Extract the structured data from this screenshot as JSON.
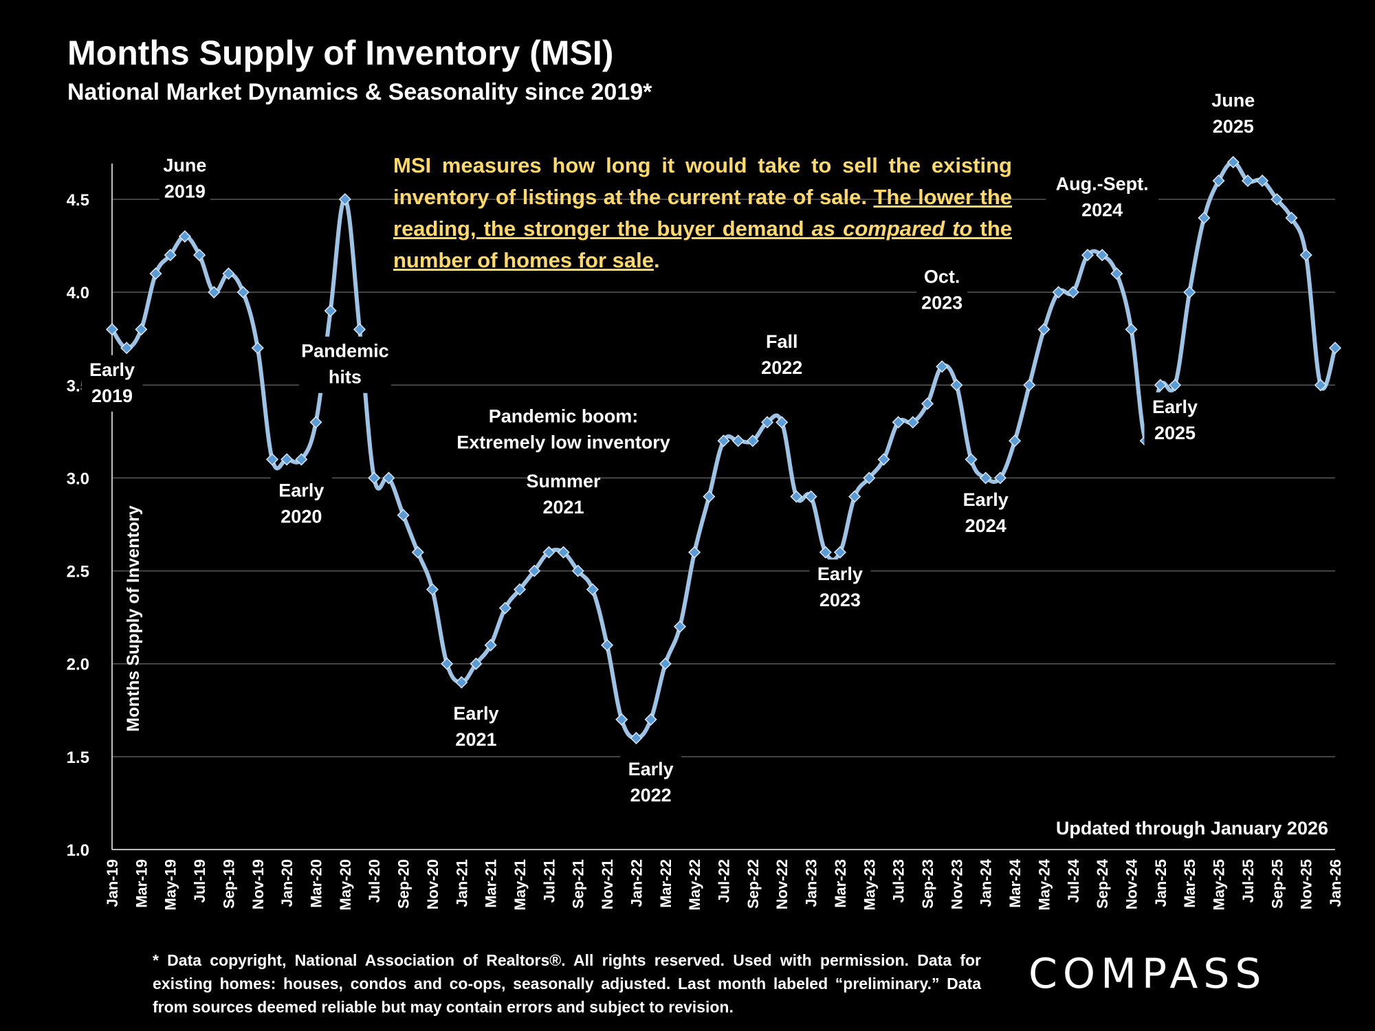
{
  "title": "Months Supply of Inventory (MSI)",
  "subtitle": "National Market Dynamics & Seasonality since 2019*",
  "description": {
    "part1": "MSI measures how long it would take to sell the existing inventory of listings at the current rate of sale. ",
    "part2": "The lower the reading, the stronger the buyer demand ",
    "part3": "as compared to",
    "part4": " the number of homes for sale",
    "part5": "."
  },
  "updated": "Updated through January 2026",
  "footnote": "* Data copyright, National Association of Realtors®. All rights reserved. Used with permission. Data for existing homes: houses, condos and co-ops, seasonally adjusted. Last month labeled “preliminary.” Data from sources deemed reliable but may contain errors and subject to revision.",
  "logo": "COMPASS",
  "colors": {
    "background": "#000000",
    "line": "#9dc3e6",
    "marker": "#5b9bd5",
    "accent_text": "#ffd966",
    "gridline": "#595959"
  },
  "chart_data": {
    "type": "line",
    "ylabel": "Months Supply of Inventory",
    "ylim": [
      1.0,
      4.7
    ],
    "yticks": [
      "1.0",
      "1.5",
      "2.0",
      "2.5",
      "3.0",
      "3.5",
      "4.0",
      "4.5"
    ],
    "ytick_values": [
      1.0,
      1.5,
      2.0,
      2.5,
      3.0,
      3.5,
      4.0,
      4.5
    ],
    "grid": true,
    "x": [
      "Jan-19",
      "Feb-19",
      "Mar-19",
      "Apr-19",
      "May-19",
      "Jun-19",
      "Jul-19",
      "Aug-19",
      "Sep-19",
      "Oct-19",
      "Nov-19",
      "Dec-19",
      "Jan-20",
      "Feb-20",
      "Mar-20",
      "Apr-20",
      "May-20",
      "Jun-20",
      "Jul-20",
      "Aug-20",
      "Sep-20",
      "Oct-20",
      "Nov-20",
      "Dec-20",
      "Jan-21",
      "Feb-21",
      "Mar-21",
      "Apr-21",
      "May-21",
      "Jun-21",
      "Jul-21",
      "Aug-21",
      "Sep-21",
      "Oct-21",
      "Nov-21",
      "Dec-21",
      "Jan-22",
      "Feb-22",
      "Mar-22",
      "Apr-22",
      "May-22",
      "Jun-22",
      "Jul-22",
      "Aug-22",
      "Sep-22",
      "Oct-22",
      "Nov-22",
      "Dec-22",
      "Jan-23",
      "Feb-23",
      "Mar-23",
      "Apr-23",
      "May-23",
      "Jun-23",
      "Jul-23",
      "Aug-23",
      "Sep-23",
      "Oct-23",
      "Nov-23",
      "Dec-23",
      "Jan-24",
      "Feb-24",
      "Mar-24",
      "Apr-24",
      "May-24",
      "Jun-24",
      "Jul-24",
      "Aug-24",
      "Sep-24",
      "Oct-24",
      "Nov-24",
      "Dec-24",
      "Jan-25",
      "Feb-25",
      "Mar-25",
      "Apr-25",
      "May-25",
      "Jun-25",
      "Jul-25",
      "Aug-25",
      "Sep-25",
      "Oct-25",
      "Nov-25",
      "Dec-25",
      "Jan-26"
    ],
    "xtick_labels": [
      "Jan-19",
      "Mar-19",
      "May-19",
      "Jul-19",
      "Sep-19",
      "Nov-19",
      "Jan-20",
      "Mar-20",
      "May-20",
      "Jul-20",
      "Sep-20",
      "Nov-20",
      "Jan-21",
      "Mar-21",
      "May-21",
      "Jul-21",
      "Sep-21",
      "Nov-21",
      "Jan-22",
      "Mar-22",
      "May-22",
      "Jul-22",
      "Sep-22",
      "Nov-22",
      "Jan-23",
      "Mar-23",
      "May-23",
      "Jul-23",
      "Sep-23",
      "Nov-23",
      "Jan-24",
      "Mar-24",
      "May-24",
      "Jul-24",
      "Sep-24",
      "Nov-24",
      "Jan-25",
      "Mar-25",
      "May-25",
      "Jul-25",
      "Sep-25",
      "Nov-25",
      "Jan-26"
    ],
    "values": [
      3.8,
      3.7,
      3.8,
      4.1,
      4.2,
      4.3,
      4.2,
      4.0,
      4.1,
      4.0,
      3.7,
      3.1,
      3.1,
      3.1,
      3.3,
      3.9,
      4.5,
      3.8,
      3.0,
      3.0,
      2.8,
      2.6,
      2.4,
      2.0,
      1.9,
      2.0,
      2.1,
      2.3,
      2.4,
      2.5,
      2.6,
      2.6,
      2.5,
      2.4,
      2.1,
      1.7,
      1.6,
      1.7,
      2.0,
      2.2,
      2.6,
      2.9,
      3.2,
      3.2,
      3.2,
      3.3,
      3.3,
      2.9,
      2.9,
      2.6,
      2.6,
      2.9,
      3.0,
      3.1,
      3.3,
      3.3,
      3.4,
      3.6,
      3.5,
      3.1,
      3.0,
      3.0,
      3.2,
      3.5,
      3.8,
      4.0,
      4.0,
      4.2,
      4.2,
      4.1,
      3.8,
      3.2,
      3.5,
      3.5,
      4.0,
      4.4,
      4.6,
      4.7,
      4.6,
      4.6,
      4.5,
      4.4,
      4.2,
      3.5,
      3.7
    ],
    "annotations": [
      {
        "lines": [
          "Early",
          "2019"
        ],
        "x": "Jan-19",
        "y": 3.55
      },
      {
        "lines": [
          "June",
          "2019"
        ],
        "x": "Jun-19",
        "y": 4.65
      },
      {
        "lines": [
          "Early",
          "2020"
        ],
        "x": "Feb-20",
        "y": 2.9
      },
      {
        "lines": [
          "Pandemic",
          "hits"
        ],
        "x": "May-20",
        "y": 3.65
      },
      {
        "lines": [
          "Pandemic boom:",
          "Extremely low inventory"
        ],
        "x": "Aug-21",
        "y": 3.3
      },
      {
        "lines": [
          "Summer",
          "2021"
        ],
        "x": "Aug-21",
        "y": 2.95
      },
      {
        "lines": [
          "Early",
          "2021"
        ],
        "x": "Feb-21",
        "y": 1.7
      },
      {
        "lines": [
          "Early",
          "2022"
        ],
        "x": "Feb-22",
        "y": 1.4
      },
      {
        "lines": [
          "Fall",
          "2022"
        ],
        "x": "Nov-22",
        "y": 3.7
      },
      {
        "lines": [
          "Early",
          "2023"
        ],
        "x": "Mar-23",
        "y": 2.45
      },
      {
        "lines": [
          "Oct.",
          "2023"
        ],
        "x": "Oct-23",
        "y": 4.05
      },
      {
        "lines": [
          "Early",
          "2024"
        ],
        "x": "Jan-24",
        "y": 2.85
      },
      {
        "lines": [
          "Aug.-Sept.",
          "2024"
        ],
        "x": "Sep-24",
        "y": 4.55
      },
      {
        "lines": [
          "Early",
          "2025"
        ],
        "x": "Feb-25",
        "y": 3.35
      },
      {
        "lines": [
          "June",
          "2025"
        ],
        "x": "Jun-25",
        "y": 5.0
      }
    ]
  }
}
